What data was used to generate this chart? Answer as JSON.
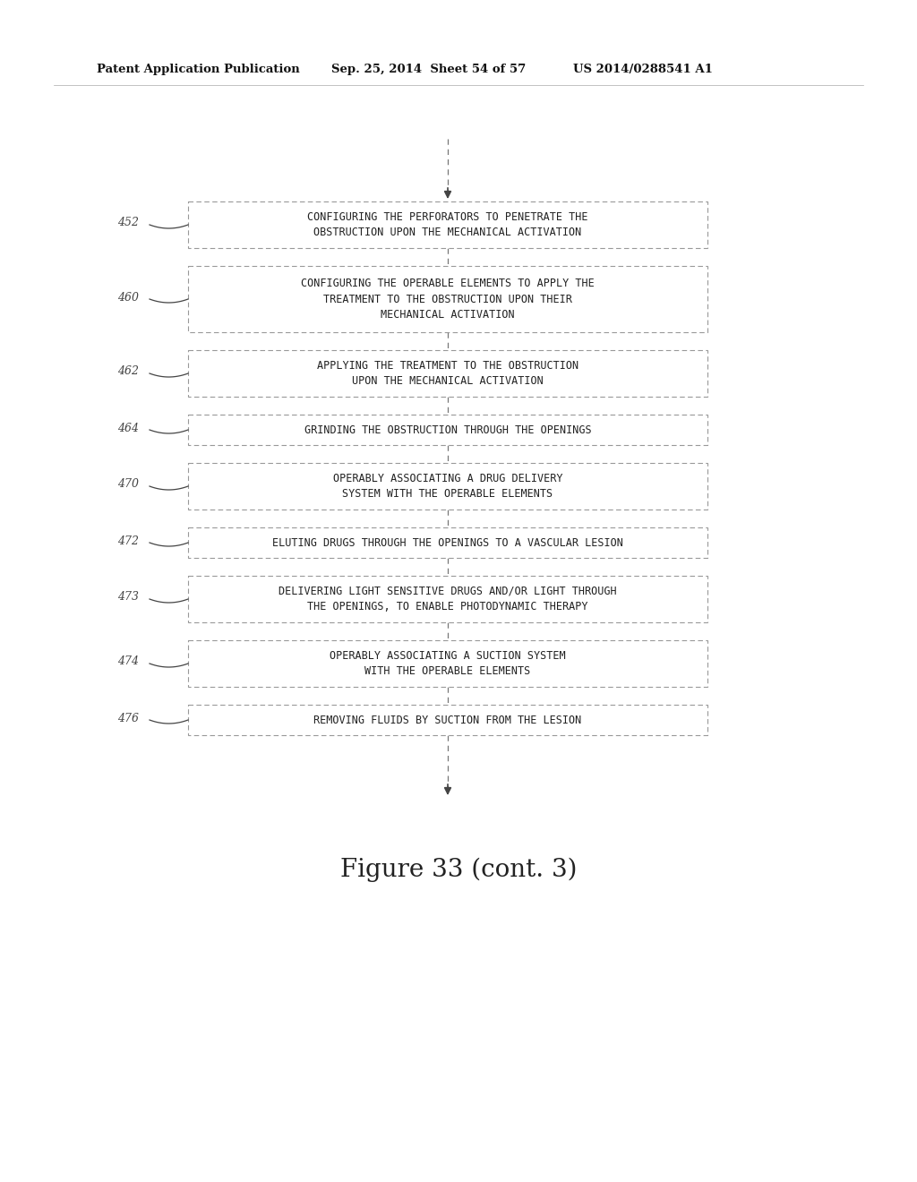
{
  "header_left": "Patent Application Publication",
  "header_mid": "Sep. 25, 2014  Sheet 54 of 57",
  "header_right": "US 2014/0288541 A1",
  "figure_caption": "Figure 33 (cont. 3)",
  "boxes": [
    {
      "label": "452",
      "text": "CONFIGURING THE PERFORATORS TO PENETRATE THE\nOBSTRUCTION UPON THE MECHANICAL ACTIVATION",
      "lines": 2
    },
    {
      "label": "460",
      "text": "CONFIGURING THE OPERABLE ELEMENTS TO APPLY THE\nTREATMENT TO THE OBSTRUCTION UPON THEIR\nMECHANICAL ACTIVATION",
      "lines": 3
    },
    {
      "label": "462",
      "text": "APPLYING THE TREATMENT TO THE OBSTRUCTION\nUPON THE MECHANICAL ACTIVATION",
      "lines": 2
    },
    {
      "label": "464",
      "text": "GRINDING THE OBSTRUCTION THROUGH THE OPENINGS",
      "lines": 1
    },
    {
      "label": "470",
      "text": "OPERABLY ASSOCIATING A DRUG DELIVERY\nSYSTEM WITH THE OPERABLE ELEMENTS",
      "lines": 2
    },
    {
      "label": "472",
      "text": "ELUTING DRUGS THROUGH THE OPENINGS TO A VASCULAR LESION",
      "lines": 1
    },
    {
      "label": "473",
      "text": "DELIVERING LIGHT SENSITIVE DRUGS AND/OR LIGHT THROUGH\nTHE OPENINGS, TO ENABLE PHOTODYNAMIC THERAPY",
      "lines": 2
    },
    {
      "label": "474",
      "text": "OPERABLY ASSOCIATING A SUCTION SYSTEM\nWITH THE OPERABLE ELEMENTS",
      "lines": 2
    },
    {
      "label": "476",
      "text": "REMOVING FLUIDS BY SUCTION FROM THE LESION",
      "lines": 1
    }
  ],
  "background_color": "#ffffff",
  "box_edge_color": "#999999",
  "text_color": "#222222",
  "label_color": "#444444",
  "line_color": "#777777"
}
